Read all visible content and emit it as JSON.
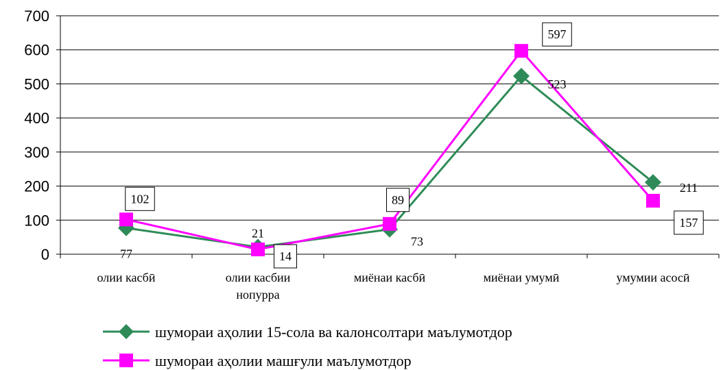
{
  "chart_data": {
    "type": "line",
    "categories": [
      [
        "олии касбӣ"
      ],
      [
        "олии касбии",
        "нопурра"
      ],
      [
        "миёнаи касбӣ"
      ],
      [
        "миёнаи умумӣ"
      ],
      [
        "умумии асосӣ"
      ]
    ],
    "ylim": [
      0,
      700
    ],
    "yticks": [
      0,
      100,
      200,
      300,
      400,
      500,
      600,
      700
    ],
    "grid": true,
    "legend_position": "bottom",
    "series": [
      {
        "name": "шумораи аҳолии 15-сола ва калонсолтари  маълумотдор",
        "values": [
          77,
          21,
          73,
          523,
          211
        ],
        "labels": [
          "77",
          "21",
          "73",
          "523",
          "211"
        ],
        "color": "#2E8B57",
        "marker": "diamond"
      },
      {
        "name": "шумораи аҳолии машғули маълумотдор",
        "values": [
          102,
          14,
          89,
          597,
          157
        ],
        "labels": [
          "102",
          "14",
          "89",
          "597",
          "157"
        ],
        "color": "#FF00FF",
        "marker": "square",
        "boxed_labels": true
      }
    ]
  }
}
